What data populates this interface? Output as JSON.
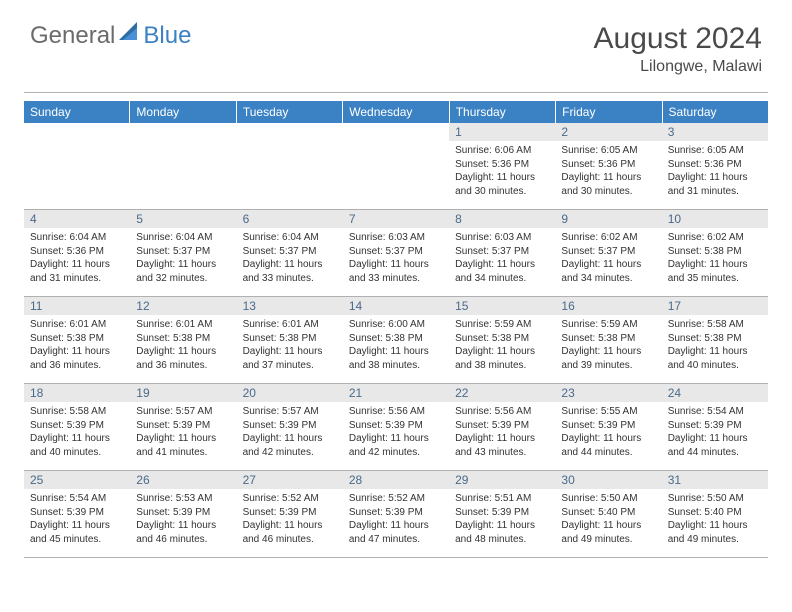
{
  "logo": {
    "general": "General",
    "blue": "Blue"
  },
  "title": "August 2024",
  "subtitle": "Lilongwe, Malawi",
  "colors": {
    "header_bg": "#3b82c4",
    "header_text": "#ffffff",
    "daynum_bg": "#e8e8e8",
    "daynum_text": "#4a6a8a",
    "rule": "#b0b0b0",
    "body_text": "#333333",
    "logo_gray": "#6b6b6b",
    "logo_blue": "#3b82c4"
  },
  "columns": [
    "Sunday",
    "Monday",
    "Tuesday",
    "Wednesday",
    "Thursday",
    "Friday",
    "Saturday"
  ],
  "layout": {
    "first_weekday_index": 4,
    "days_in_month": 31
  },
  "days": {
    "1": {
      "sunrise": "6:06 AM",
      "sunset": "5:36 PM",
      "daylight": "11 hours and 30 minutes."
    },
    "2": {
      "sunrise": "6:05 AM",
      "sunset": "5:36 PM",
      "daylight": "11 hours and 30 minutes."
    },
    "3": {
      "sunrise": "6:05 AM",
      "sunset": "5:36 PM",
      "daylight": "11 hours and 31 minutes."
    },
    "4": {
      "sunrise": "6:04 AM",
      "sunset": "5:36 PM",
      "daylight": "11 hours and 31 minutes."
    },
    "5": {
      "sunrise": "6:04 AM",
      "sunset": "5:37 PM",
      "daylight": "11 hours and 32 minutes."
    },
    "6": {
      "sunrise": "6:04 AM",
      "sunset": "5:37 PM",
      "daylight": "11 hours and 33 minutes."
    },
    "7": {
      "sunrise": "6:03 AM",
      "sunset": "5:37 PM",
      "daylight": "11 hours and 33 minutes."
    },
    "8": {
      "sunrise": "6:03 AM",
      "sunset": "5:37 PM",
      "daylight": "11 hours and 34 minutes."
    },
    "9": {
      "sunrise": "6:02 AM",
      "sunset": "5:37 PM",
      "daylight": "11 hours and 34 minutes."
    },
    "10": {
      "sunrise": "6:02 AM",
      "sunset": "5:38 PM",
      "daylight": "11 hours and 35 minutes."
    },
    "11": {
      "sunrise": "6:01 AM",
      "sunset": "5:38 PM",
      "daylight": "11 hours and 36 minutes."
    },
    "12": {
      "sunrise": "6:01 AM",
      "sunset": "5:38 PM",
      "daylight": "11 hours and 36 minutes."
    },
    "13": {
      "sunrise": "6:01 AM",
      "sunset": "5:38 PM",
      "daylight": "11 hours and 37 minutes."
    },
    "14": {
      "sunrise": "6:00 AM",
      "sunset": "5:38 PM",
      "daylight": "11 hours and 38 minutes."
    },
    "15": {
      "sunrise": "5:59 AM",
      "sunset": "5:38 PM",
      "daylight": "11 hours and 38 minutes."
    },
    "16": {
      "sunrise": "5:59 AM",
      "sunset": "5:38 PM",
      "daylight": "11 hours and 39 minutes."
    },
    "17": {
      "sunrise": "5:58 AM",
      "sunset": "5:38 PM",
      "daylight": "11 hours and 40 minutes."
    },
    "18": {
      "sunrise": "5:58 AM",
      "sunset": "5:39 PM",
      "daylight": "11 hours and 40 minutes."
    },
    "19": {
      "sunrise": "5:57 AM",
      "sunset": "5:39 PM",
      "daylight": "11 hours and 41 minutes."
    },
    "20": {
      "sunrise": "5:57 AM",
      "sunset": "5:39 PM",
      "daylight": "11 hours and 42 minutes."
    },
    "21": {
      "sunrise": "5:56 AM",
      "sunset": "5:39 PM",
      "daylight": "11 hours and 42 minutes."
    },
    "22": {
      "sunrise": "5:56 AM",
      "sunset": "5:39 PM",
      "daylight": "11 hours and 43 minutes."
    },
    "23": {
      "sunrise": "5:55 AM",
      "sunset": "5:39 PM",
      "daylight": "11 hours and 44 minutes."
    },
    "24": {
      "sunrise": "5:54 AM",
      "sunset": "5:39 PM",
      "daylight": "11 hours and 44 minutes."
    },
    "25": {
      "sunrise": "5:54 AM",
      "sunset": "5:39 PM",
      "daylight": "11 hours and 45 minutes."
    },
    "26": {
      "sunrise": "5:53 AM",
      "sunset": "5:39 PM",
      "daylight": "11 hours and 46 minutes."
    },
    "27": {
      "sunrise": "5:52 AM",
      "sunset": "5:39 PM",
      "daylight": "11 hours and 46 minutes."
    },
    "28": {
      "sunrise": "5:52 AM",
      "sunset": "5:39 PM",
      "daylight": "11 hours and 47 minutes."
    },
    "29": {
      "sunrise": "5:51 AM",
      "sunset": "5:39 PM",
      "daylight": "11 hours and 48 minutes."
    },
    "30": {
      "sunrise": "5:50 AM",
      "sunset": "5:40 PM",
      "daylight": "11 hours and 49 minutes."
    },
    "31": {
      "sunrise": "5:50 AM",
      "sunset": "5:40 PM",
      "daylight": "11 hours and 49 minutes."
    }
  },
  "labels": {
    "sunrise": "Sunrise: ",
    "sunset": "Sunset: ",
    "daylight": "Daylight: "
  }
}
